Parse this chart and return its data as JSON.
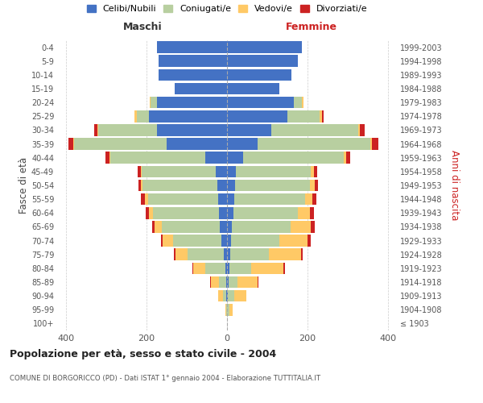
{
  "age_groups": [
    "100+",
    "95-99",
    "90-94",
    "85-89",
    "80-84",
    "75-79",
    "70-74",
    "65-69",
    "60-64",
    "55-59",
    "50-54",
    "45-49",
    "40-44",
    "35-39",
    "30-34",
    "25-29",
    "20-24",
    "15-19",
    "10-14",
    "5-9",
    "0-4"
  ],
  "birth_years": [
    "≤ 1903",
    "1904-1908",
    "1909-1913",
    "1914-1918",
    "1919-1923",
    "1924-1928",
    "1929-1933",
    "1934-1938",
    "1939-1943",
    "1944-1948",
    "1949-1953",
    "1954-1958",
    "1959-1963",
    "1964-1968",
    "1969-1973",
    "1974-1978",
    "1979-1983",
    "1984-1988",
    "1989-1993",
    "1994-1998",
    "1999-2003"
  ],
  "male": {
    "celibi": [
      0,
      0,
      2,
      3,
      5,
      8,
      15,
      18,
      20,
      22,
      25,
      28,
      55,
      150,
      175,
      195,
      175,
      130,
      170,
      170,
      175
    ],
    "coniugati": [
      0,
      2,
      8,
      18,
      50,
      90,
      120,
      145,
      165,
      175,
      185,
      185,
      235,
      230,
      145,
      30,
      15,
      0,
      0,
      0,
      0
    ],
    "vedovi": [
      0,
      3,
      12,
      20,
      30,
      30,
      25,
      18,
      10,
      8,
      5,
      2,
      2,
      2,
      2,
      5,
      3,
      0,
      0,
      0,
      0
    ],
    "divorziati": [
      0,
      0,
      0,
      2,
      2,
      5,
      5,
      5,
      8,
      10,
      5,
      8,
      10,
      12,
      8,
      0,
      0,
      0,
      0,
      0,
      0
    ]
  },
  "female": {
    "nubili": [
      0,
      0,
      2,
      3,
      5,
      8,
      10,
      12,
      15,
      18,
      20,
      22,
      40,
      75,
      110,
      150,
      165,
      130,
      160,
      175,
      185
    ],
    "coniugate": [
      0,
      5,
      15,
      22,
      55,
      95,
      120,
      145,
      160,
      175,
      185,
      185,
      250,
      280,
      215,
      80,
      20,
      0,
      0,
      0,
      0
    ],
    "vedove": [
      0,
      8,
      30,
      50,
      80,
      80,
      70,
      50,
      30,
      18,
      12,
      8,
      5,
      5,
      5,
      5,
      5,
      0,
      0,
      0,
      0
    ],
    "divorziate": [
      0,
      0,
      0,
      2,
      3,
      5,
      8,
      10,
      10,
      10,
      8,
      8,
      10,
      15,
      12,
      5,
      0,
      0,
      0,
      0,
      0
    ]
  },
  "colors": {
    "celibi": "#4472c4",
    "coniugati": "#b8cfa0",
    "vedovi": "#ffc966",
    "divorziati": "#cc2222"
  },
  "title": "Popolazione per età, sesso e stato civile - 2004",
  "subtitle": "COMUNE DI BORGORICCO (PD) - Dati ISTAT 1° gennaio 2004 - Elaborazione TUTTITALIA.IT",
  "xlabel_left": "Maschi",
  "xlabel_right": "Femmine",
  "ylabel_left": "Fasce di età",
  "ylabel_right": "Anni di nascita",
  "xlim": 420,
  "legend_labels": [
    "Celibi/Nubili",
    "Coniugati/e",
    "Vedovi/e",
    "Divorziati/e"
  ]
}
